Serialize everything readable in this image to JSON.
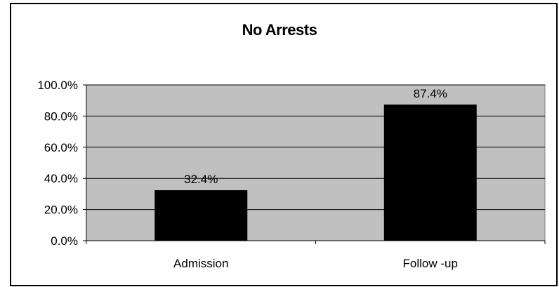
{
  "chart_data": {
    "type": "bar",
    "title": "No Arrests",
    "categories": [
      "Admission",
      "Follow-up"
    ],
    "series": [
      {
        "values": [
          32.4,
          87.4
        ],
        "color": "#000000"
      }
    ],
    "data_labels": [
      "32.4%",
      "87.4%"
    ],
    "ylim": [
      0,
      100
    ],
    "yticks": [
      0,
      20,
      40,
      60,
      80,
      100
    ],
    "ytick_labels": [
      "0.0%",
      "20.0%",
      "40.0%",
      "60.0%",
      "80.0%",
      "100.0%"
    ],
    "category_labels": [
      "Admission",
      "Follow -up"
    ],
    "plot_background": "#c0c0c0",
    "grid": true,
    "legend": "none"
  }
}
